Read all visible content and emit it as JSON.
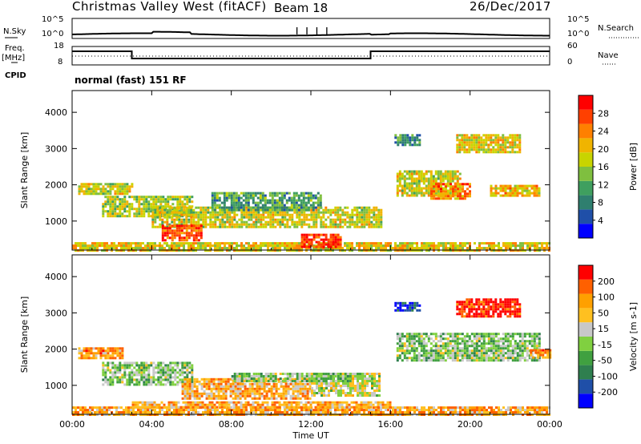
{
  "header": {
    "site": "Christmas Valley West (fitACF)",
    "beam": "Beam 18",
    "date": "26/Dec/2017"
  },
  "summary": {
    "nsky_label": "N.Sky",
    "nsearch_label": "N.Search",
    "freq_label_1": "Freq.",
    "freq_label_2": "[MHz]",
    "nave_label": "Nave",
    "cpid_label": "CPID",
    "mode_text": "normal (fast) 151 RF",
    "noise_ticks_left": [
      "10^5",
      "10^0"
    ],
    "noise_ticks_right": [
      "10^5",
      "10^0"
    ],
    "freq_ticks": [
      "18",
      "8"
    ],
    "nave_ticks": [
      "60",
      "0"
    ]
  },
  "chart_data": [
    {
      "type": "heatmap",
      "title": "",
      "quantity": "Power",
      "ylabel": "Slant Range [km]",
      "xlabel": "",
      "x_ticks": [
        "00:00",
        "04:00",
        "08:00",
        "12:00",
        "16:00",
        "20:00",
        "00:00"
      ],
      "y_ticks": [
        1000,
        2000,
        3000,
        4000
      ],
      "ylim": [
        200,
        4600
      ],
      "xlim_hours": [
        0,
        24
      ],
      "colorbar": {
        "label": "Power [dB]",
        "ticks": [
          "28",
          "24",
          "20",
          "16",
          "12",
          "8",
          "4"
        ],
        "colors": [
          "#0000ff",
          "#1f4fa8",
          "#2f7f6f",
          "#3f9f5f",
          "#7fbf3f",
          "#c8d400",
          "#f0b400",
          "#ff8000",
          "#ff4000",
          "#ff0000"
        ]
      },
      "regions": [
        {
          "t0": 0.3,
          "t1": 3.0,
          "r0": 1750,
          "r1": 2050,
          "level": 0.55
        },
        {
          "t0": 1.5,
          "t1": 6.0,
          "r0": 1150,
          "r1": 1700,
          "level": 0.5
        },
        {
          "t0": 4.0,
          "t1": 15.5,
          "r0": 850,
          "r1": 1400,
          "level": 0.55
        },
        {
          "t0": 4.5,
          "t1": 6.5,
          "r0": 500,
          "r1": 900,
          "level": 0.85
        },
        {
          "t0": 7.0,
          "t1": 12.5,
          "r0": 1300,
          "r1": 1800,
          "level": 0.35
        },
        {
          "t0": 0.0,
          "t1": 24.0,
          "r0": 220,
          "r1": 420,
          "level": 0.6
        },
        {
          "t0": 11.5,
          "t1": 13.5,
          "r0": 300,
          "r1": 650,
          "level": 0.9
        },
        {
          "t0": 16.3,
          "t1": 19.5,
          "r0": 1700,
          "r1": 2400,
          "level": 0.55
        },
        {
          "t0": 18.0,
          "t1": 20.0,
          "r0": 1650,
          "r1": 2050,
          "level": 0.75
        },
        {
          "t0": 21.0,
          "t1": 23.5,
          "r0": 1700,
          "r1": 2000,
          "level": 0.65
        },
        {
          "t0": 19.3,
          "t1": 22.5,
          "r0": 2900,
          "r1": 3400,
          "level": 0.6
        },
        {
          "t0": 16.2,
          "t1": 17.5,
          "r0": 3100,
          "r1": 3400,
          "level": 0.3
        }
      ]
    },
    {
      "type": "heatmap",
      "title": "",
      "quantity": "Velocity",
      "ylabel": "Slant Range [km]",
      "xlabel": "Time UT",
      "x_ticks": [
        "00:00",
        "04:00",
        "08:00",
        "12:00",
        "16:00",
        "20:00",
        "00:00"
      ],
      "y_ticks": [
        1000,
        2000,
        3000,
        4000
      ],
      "ylim": [
        200,
        4600
      ],
      "xlim_hours": [
        0,
        24
      ],
      "colorbar": {
        "label": "Velocity [m s-1]",
        "ticks": [
          "200",
          "100",
          "50",
          "15",
          "-15",
          "-50",
          "-100",
          "-200"
        ],
        "colors": [
          "#0000ff",
          "#1f4fa8",
          "#2f7f4f",
          "#40a040",
          "#80d040",
          "#c8c8c8",
          "#ffc020",
          "#ffa000",
          "#ff6000",
          "#ff0000"
        ]
      },
      "regions": [
        {
          "t0": 0.3,
          "t1": 2.5,
          "r0": 1750,
          "r1": 2050,
          "level": 0.75
        },
        {
          "t0": 1.5,
          "t1": 6.0,
          "r0": 1000,
          "r1": 1650,
          "level": 0.45
        },
        {
          "t0": 5.5,
          "t1": 12.0,
          "r0": 650,
          "r1": 1200,
          "level": 0.7
        },
        {
          "t0": 12.0,
          "t1": 15.5,
          "r0": 700,
          "r1": 1350,
          "level": 0.55
        },
        {
          "t0": 8.0,
          "t1": 14.0,
          "r0": 1150,
          "r1": 1350,
          "level": 0.45
        },
        {
          "t0": 0.0,
          "t1": 24.0,
          "r0": 220,
          "r1": 420,
          "level": 0.72
        },
        {
          "t0": 3.0,
          "t1": 16.0,
          "r0": 400,
          "r1": 560,
          "level": 0.72
        },
        {
          "t0": 16.3,
          "t1": 23.5,
          "r0": 1700,
          "r1": 2450,
          "level": 0.45
        },
        {
          "t0": 23.0,
          "t1": 24.0,
          "r0": 1750,
          "r1": 2000,
          "level": 0.75
        },
        {
          "t0": 19.3,
          "t1": 22.5,
          "r0": 2900,
          "r1": 3400,
          "level": 0.95
        },
        {
          "t0": 16.2,
          "t1": 17.5,
          "r0": 3100,
          "r1": 3300,
          "level": 0.1
        }
      ]
    }
  ]
}
